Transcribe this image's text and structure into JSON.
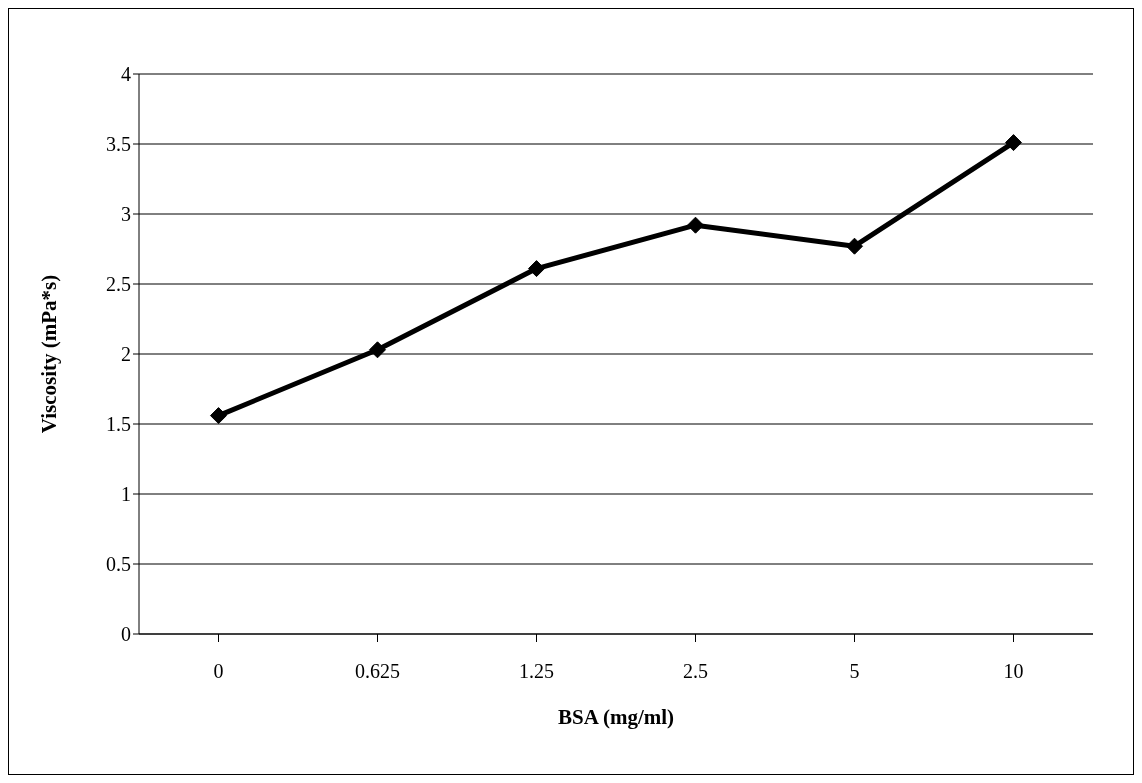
{
  "chart_data": {
    "type": "line",
    "xlabel": "BSA (mg/ml)",
    "ylabel": "Viscosity (mPa*s)",
    "categories": [
      "0",
      "0.625",
      "1.25",
      "2.5",
      "5",
      "10"
    ],
    "series": [
      {
        "color": "#000000",
        "values": [
          1.56,
          2.03,
          2.61,
          2.92,
          2.77,
          3.51
        ]
      }
    ],
    "ylim": [
      0,
      4
    ],
    "yticks": [
      0,
      0.5,
      1,
      1.5,
      2,
      2.5,
      3,
      3.5,
      4
    ],
    "grid": "y",
    "marker": "diamond",
    "line_style": "solid"
  }
}
